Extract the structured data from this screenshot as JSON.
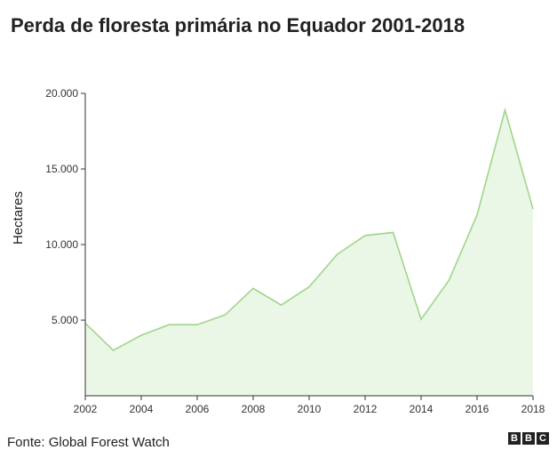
{
  "title": "Perda de floresta primária no Equador 2001-2018",
  "source": "Fonte: Global Forest Watch",
  "logo": [
    "B",
    "B",
    "C"
  ],
  "colors": {
    "line": "#9ed68a",
    "fill": "#ebf7e6",
    "axis": "#333333"
  },
  "chart_data": {
    "type": "area",
    "title": "Perda de floresta primária no Equador 2001-2018",
    "xlabel": "",
    "ylabel": "Hectares",
    "x": [
      2002,
      2003,
      2004,
      2005,
      2006,
      2007,
      2008,
      2009,
      2010,
      2011,
      2012,
      2013,
      2014,
      2015,
      2016,
      2017,
      2018
    ],
    "values": [
      4800,
      3000,
      4000,
      4700,
      4700,
      5350,
      7100,
      6000,
      7200,
      9350,
      10600,
      10800,
      5050,
      7650,
      11950,
      18900,
      12350
    ],
    "xlim": [
      2002,
      2018
    ],
    "ylim": [
      0,
      20000
    ],
    "xticks": [
      2002,
      2004,
      2006,
      2008,
      2010,
      2012,
      2014,
      2016,
      2018
    ],
    "yticks": [
      5000,
      10000,
      15000,
      20000
    ],
    "ytick_labels": [
      "5.000",
      "10.000",
      "15.000",
      "20.000"
    ],
    "grid": false,
    "legend": "none"
  }
}
